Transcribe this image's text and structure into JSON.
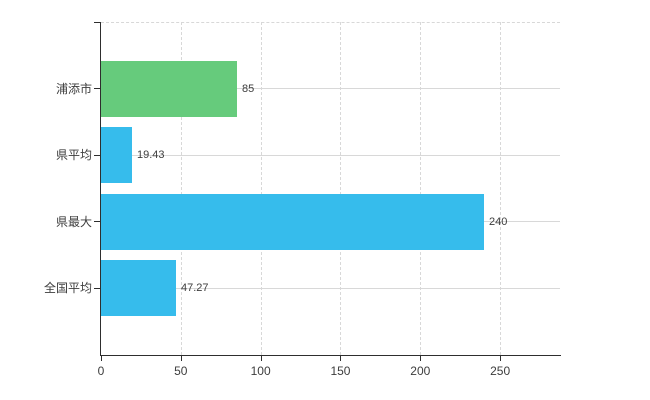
{
  "chart_data": {
    "type": "bar",
    "orientation": "horizontal",
    "title": "",
    "xlabel": "",
    "ylabel": "",
    "categories": [
      "浦添市",
      "県平均",
      "県最大",
      "全国平均"
    ],
    "values": [
      85,
      19.43,
      240,
      47.27
    ],
    "value_labels": [
      "85",
      "19.43",
      "240",
      "47.27"
    ],
    "bar_colors": [
      "#66cb7c",
      "#36bcec",
      "#36bcec",
      "#36bcec"
    ],
    "x_ticks": [
      0,
      50,
      100,
      150,
      200,
      250
    ],
    "x_tick_labels": [
      "0",
      "50",
      "100",
      "150",
      "200",
      "250"
    ],
    "xlim": [
      0,
      287.5
    ],
    "grid": true,
    "legend": false
  },
  "colors": {
    "axis": "#2e2e2e",
    "grid": "#d8d8d8",
    "text": "#3d3d3d",
    "bar_green": "#66cb7c",
    "bar_blue": "#36bcec",
    "background": "#ffffff"
  }
}
